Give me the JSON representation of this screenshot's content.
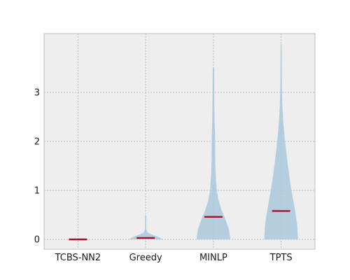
{
  "chart_data": {
    "type": "violin",
    "categories": [
      "TCBS-NN2",
      "Greedy",
      "MINLP",
      "TPTS"
    ],
    "yticks": [
      0,
      1,
      2,
      3
    ],
    "ylim": [
      -0.2,
      4.2
    ],
    "grid": true,
    "colors": {
      "violin_fill": "#a9c8dd",
      "median": "#a0122e",
      "background": "#eeeeee",
      "grid": "#b0b0b0",
      "frame": "#bcbcbc"
    },
    "series": [
      {
        "median": 0.0,
        "profile": [
          [
            0.0,
            1.0
          ]
        ]
      },
      {
        "median": 0.03,
        "profile": [
          [
            0.0,
            1.0
          ],
          [
            0.05,
            0.75
          ],
          [
            0.1,
            0.35
          ],
          [
            0.14,
            0.12
          ],
          [
            0.2,
            0.04
          ],
          [
            0.3,
            0.03
          ],
          [
            0.45,
            0.04
          ],
          [
            0.5,
            0.02
          ]
        ]
      },
      {
        "median": 0.46,
        "profile": [
          [
            0.0,
            1.0
          ],
          [
            0.2,
            0.92
          ],
          [
            0.4,
            0.72
          ],
          [
            0.6,
            0.48
          ],
          [
            0.8,
            0.3
          ],
          [
            1.0,
            0.2
          ],
          [
            1.3,
            0.14
          ],
          [
            1.6,
            0.11
          ],
          [
            1.9,
            0.1
          ],
          [
            2.1,
            0.1
          ],
          [
            2.3,
            0.08
          ],
          [
            2.6,
            0.06
          ],
          [
            3.0,
            0.05
          ],
          [
            3.3,
            0.045
          ],
          [
            3.5,
            0.04
          ]
        ]
      },
      {
        "median": 0.58,
        "profile": [
          [
            0.0,
            1.0
          ],
          [
            0.3,
            0.95
          ],
          [
            0.6,
            0.82
          ],
          [
            0.9,
            0.66
          ],
          [
            1.2,
            0.52
          ],
          [
            1.5,
            0.4
          ],
          [
            1.8,
            0.3
          ],
          [
            2.1,
            0.2
          ],
          [
            2.4,
            0.13
          ],
          [
            2.7,
            0.08
          ],
          [
            3.0,
            0.05
          ],
          [
            3.3,
            0.04
          ],
          [
            3.6,
            0.035
          ],
          [
            3.9,
            0.03
          ],
          [
            3.99,
            0.02
          ]
        ]
      }
    ]
  }
}
